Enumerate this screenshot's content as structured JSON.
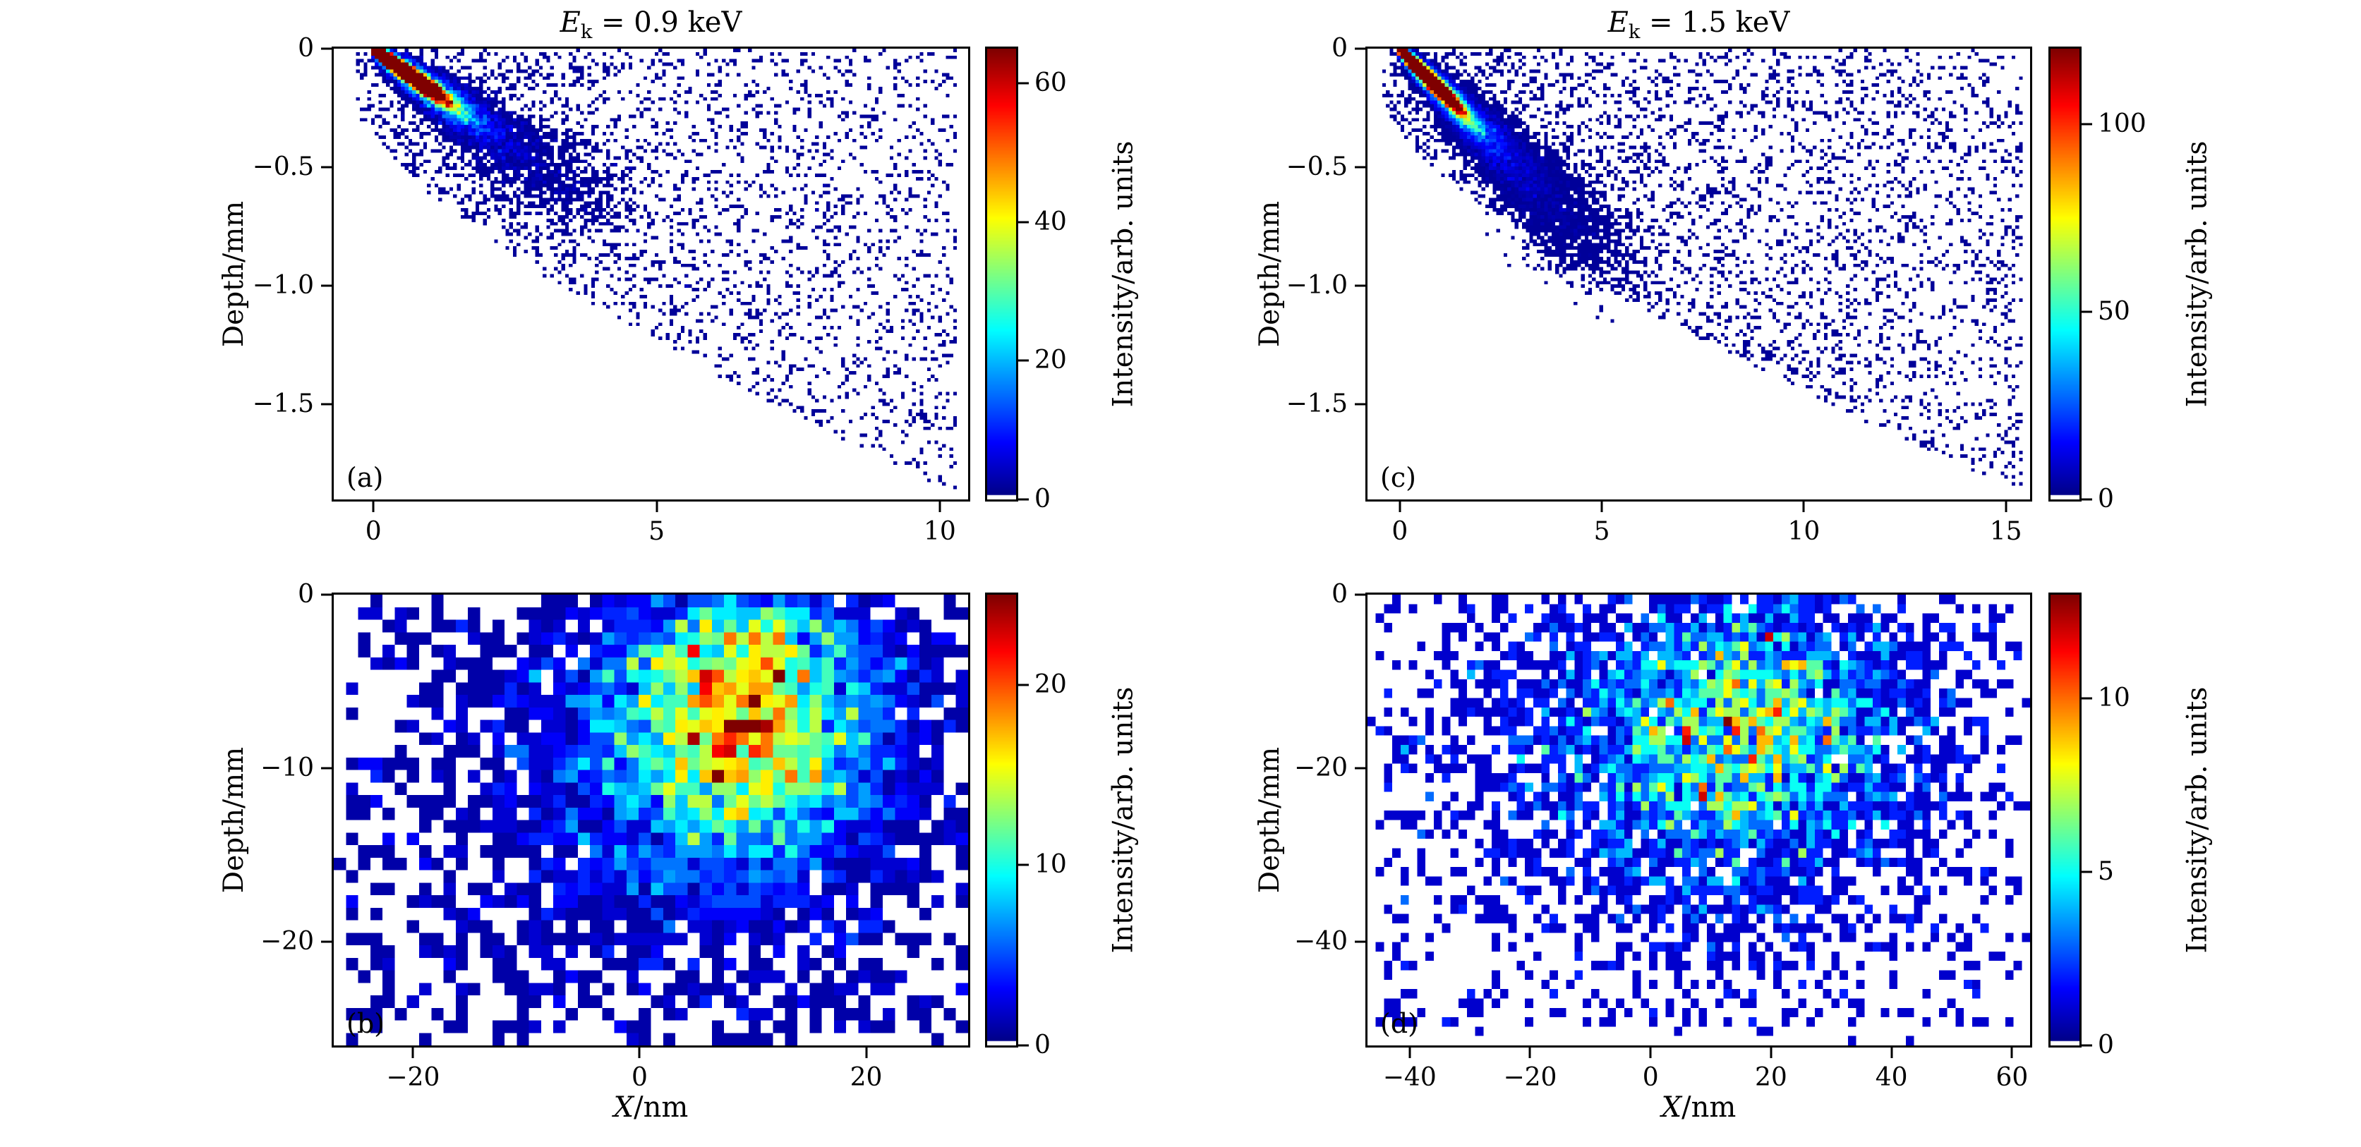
{
  "figure": {
    "background": "#ffffff",
    "colormap": "jet",
    "zero_color": "#ffffff",
    "accent_low": "#00008f",
    "accent_high": "#800000"
  },
  "chart_data": {
    "type": "heatmap",
    "layout": "2x2 panels, each 2D histogram with jet colormap and right-side colorbar",
    "panels": [
      {
        "key": "a",
        "label": "(a)",
        "title": {
          "var": "E",
          "sub": "k",
          "rest": " = 0.9 keV"
        },
        "ylabel": "Depth/mm",
        "xlim": [
          -0.7,
          10.5
        ],
        "ylim": [
          0,
          -1.9
        ],
        "xticks": {
          "values": [
            0,
            5,
            10
          ],
          "labels": [
            "0",
            "5",
            "10"
          ]
        },
        "yticks": {
          "values": [
            0,
            -0.5,
            -1.0,
            -1.5
          ],
          "labels": [
            "0",
            "−0.5",
            "−1.0",
            "−1.5"
          ]
        },
        "colorbar": {
          "max": 65,
          "tick_values": [
            0,
            20,
            40,
            60
          ],
          "tick_labels": [
            "0",
            "20",
            "40",
            "60"
          ],
          "label": "Intensity/arb. units"
        },
        "bins": [
          170,
          130
        ],
        "seed": 101,
        "populations": [
          {
            "type": "beam",
            "n": 55000,
            "from": [
              0.05,
              -0.012
            ],
            "to": [
              3.15,
              -0.53
            ],
            "widen": [
              0.02,
              0.2
            ],
            "ywiden": 0.24,
            "decay": 10
          },
          {
            "type": "beam",
            "n": 9000,
            "from": [
              0.1,
              -0.02
            ],
            "to": [
              4.4,
              -0.75
            ],
            "widen": [
              0.06,
              0.55
            ],
            "ywiden": 0.24,
            "decay": 4
          },
          {
            "type": "wedge",
            "n": 2600,
            "x": [
              -0.3,
              10.3
            ],
            "depth": 1.86
          }
        ]
      },
      {
        "key": "b",
        "label": "(b)",
        "title": null,
        "ylabel": "Depth/mm",
        "xlabel": {
          "var": "X",
          "rest": "/nm"
        },
        "xlim": [
          -27,
          29
        ],
        "ylim": [
          0,
          -26
        ],
        "xticks": {
          "values": [
            -20,
            0,
            20
          ],
          "labels": [
            "−20",
            "0",
            "20"
          ]
        },
        "yticks": {
          "values": [
            0,
            -10,
            -20
          ],
          "labels": [
            "0",
            "−10",
            "−20"
          ]
        },
        "colorbar": {
          "max": 25,
          "tick_values": [
            0,
            10,
            20
          ],
          "tick_labels": [
            "0",
            "10",
            "20"
          ],
          "label": "Intensity/arb. units"
        },
        "bins": [
          52,
          36
        ],
        "seed": 202,
        "populations": [
          {
            "type": "blob",
            "n": 3800,
            "cx": 9.5,
            "cy": -6.5,
            "sx": 6.5,
            "sy": 4.8
          },
          {
            "type": "blob",
            "n": 2600,
            "cx": 5.5,
            "cy": -9.5,
            "sx": 11,
            "sy": 6.5
          },
          {
            "type": "uniform",
            "n": 600,
            "x": [
              -26,
              28.5
            ],
            "y": [
              -25.5,
              -0.3
            ]
          }
        ]
      },
      {
        "key": "c",
        "label": "(c)",
        "title": {
          "var": "E",
          "sub": "k",
          "rest": " = 1.5 keV"
        },
        "ylabel": "Depth/mm",
        "xlim": [
          -0.8,
          15.6
        ],
        "ylim": [
          0,
          -1.9
        ],
        "xticks": {
          "values": [
            0,
            5,
            10,
            15
          ],
          "labels": [
            "0",
            "5",
            "10",
            "15"
          ]
        },
        "yticks": {
          "values": [
            0,
            -0.5,
            -1.0,
            -1.5
          ],
          "labels": [
            "0",
            "−0.5",
            "−1.0",
            "−1.5"
          ]
        },
        "colorbar": {
          "max": 120,
          "tick_values": [
            0,
            50,
            100
          ],
          "tick_labels": [
            "0",
            "50",
            "100"
          ],
          "label": "Intensity/arb. units"
        },
        "bins": [
          180,
          130
        ],
        "seed": 303,
        "populations": [
          {
            "type": "beam",
            "n": 95000,
            "from": [
              0.05,
              -0.012
            ],
            "to": [
              3.5,
              -0.6
            ],
            "widen": [
              0.02,
              0.24
            ],
            "ywiden": 0.17,
            "decay": 10
          },
          {
            "type": "beam",
            "n": 16000,
            "from": [
              0.1,
              -0.02
            ],
            "to": [
              5.2,
              -0.9
            ],
            "widen": [
              0.07,
              0.65
            ],
            "ywiden": 0.17,
            "decay": 3.5
          },
          {
            "type": "wedge",
            "n": 3400,
            "x": [
              -0.4,
              15.4
            ],
            "depth": 1.86
          }
        ]
      },
      {
        "key": "d",
        "label": "(d)",
        "title": null,
        "ylabel": "Depth/mm",
        "xlabel": {
          "var": "X",
          "rest": "/nm"
        },
        "xlim": [
          -47,
          63
        ],
        "ylim": [
          0,
          -52
        ],
        "xticks": {
          "values": [
            -40,
            -20,
            0,
            20,
            40,
            60
          ],
          "labels": [
            "−40",
            "−20",
            "0",
            "20",
            "40",
            "60"
          ]
        },
        "yticks": {
          "values": [
            0,
            -20,
            -40
          ],
          "labels": [
            "0",
            "−20",
            "−40"
          ]
        },
        "colorbar": {
          "max": 13,
          "tick_values": [
            0,
            5,
            10
          ],
          "tick_labels": [
            "0",
            "5",
            "10"
          ],
          "label": "Intensity/arb. units"
        },
        "bins": [
          80,
          48
        ],
        "seed": 404,
        "populations": [
          {
            "type": "blob",
            "n": 1900,
            "cx": 16,
            "cy": -15,
            "sx": 13,
            "sy": 8.5
          },
          {
            "type": "blob",
            "n": 2700,
            "cx": 10,
            "cy": -18,
            "sx": 21,
            "sy": 12
          },
          {
            "type": "uniform",
            "n": 750,
            "x": [
              -45,
              61
            ],
            "y": [
              -50,
              -0.5
            ]
          }
        ]
      }
    ]
  }
}
